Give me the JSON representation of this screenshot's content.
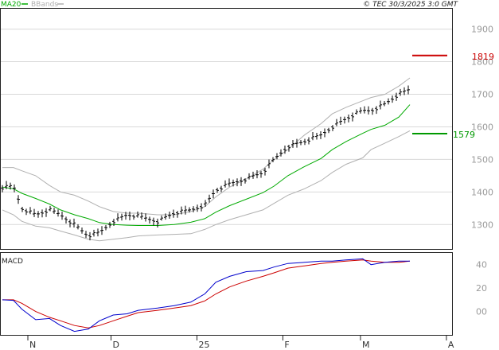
{
  "header": {
    "legend_ma20": "MA20",
    "legend_bbands": "BBands",
    "copyright": "© TEC 30/3/2025 3:0 GMT"
  },
  "macd_panel": {
    "label": "MACD"
  },
  "colors": {
    "price_bars": "#000000",
    "ma20": "#00aa00",
    "bbands": "#b0b0b0",
    "resistance": "#cc0000",
    "support": "#009900",
    "macd_line": "#0000cc",
    "signal_line": "#cc0000",
    "grid": "#d9d9d9"
  },
  "chart_data": [
    {
      "type": "line",
      "title": "",
      "xlabel": "",
      "ylabel": "",
      "ylim": [
        1225,
        1965
      ],
      "y_ticks": [
        "1900",
        "1800",
        "1700",
        "1600",
        "1500",
        "1400",
        "1300"
      ],
      "x_ticks": [
        "N",
        "D",
        "25",
        "F",
        "M",
        "A"
      ],
      "grid": true,
      "legend": "top-left",
      "x": [
        "2024-11-01",
        "2024-11-05",
        "2024-11-08",
        "2024-11-13",
        "2024-11-18",
        "2024-11-22",
        "2024-11-27",
        "2024-12-02",
        "2024-12-06",
        "2024-12-11",
        "2024-12-16",
        "2024-12-20",
        "2024-12-27",
        "2025-01-02",
        "2025-01-08",
        "2025-01-13",
        "2025-01-17",
        "2025-01-22",
        "2025-01-28",
        "2025-02-03",
        "2025-02-07",
        "2025-02-12",
        "2025-02-18",
        "2025-02-24",
        "2025-02-28",
        "2025-03-05",
        "2025-03-11",
        "2025-03-14",
        "2025-03-19",
        "2025-03-24",
        "2025-03-28"
      ],
      "series": [
        {
          "name": "Close",
          "values": [
            1413,
            1418,
            1350,
            1330,
            1345,
            1330,
            1300,
            1265,
            1275,
            1310,
            1330,
            1325,
            1310,
            1335,
            1345,
            1360,
            1405,
            1425,
            1440,
            1460,
            1500,
            1540,
            1555,
            1575,
            1600,
            1625,
            1650,
            1650,
            1670,
            1700,
            1715
          ]
        },
        {
          "name": "MA20",
          "values": [
            1415,
            1410,
            1396,
            1380,
            1363,
            1345,
            1330,
            1318,
            1306,
            1300,
            1298,
            1297,
            1297,
            1300,
            1307,
            1318,
            1338,
            1358,
            1378,
            1398,
            1418,
            1450,
            1478,
            1503,
            1530,
            1555,
            1580,
            1592,
            1605,
            1630,
            1668
          ]
        },
        {
          "name": "BBands",
          "values": [
            1475,
            1475,
            1465,
            1450,
            1420,
            1400,
            1390,
            1372,
            1355,
            1340,
            1335,
            1335,
            1330,
            1330,
            1340,
            1355,
            1385,
            1415,
            1440,
            1470,
            1500,
            1530,
            1575,
            1610,
            1640,
            1660,
            1680,
            1690,
            1700,
            1725,
            1750
          ]
        },
        {
          "name": "BBands",
          "values": [
            1345,
            1330,
            1310,
            1295,
            1290,
            1280,
            1268,
            1255,
            1250,
            1255,
            1260,
            1265,
            1268,
            1270,
            1272,
            1285,
            1300,
            1315,
            1330,
            1345,
            1365,
            1390,
            1410,
            1435,
            1460,
            1485,
            1505,
            1530,
            1550,
            1570,
            1588
          ]
        }
      ],
      "levels": [
        {
          "label": "1819",
          "value": 1819
        },
        {
          "label": "1579",
          "value": 1579
        }
      ]
    },
    {
      "type": "line",
      "title": "MACD",
      "ylim": [
        -20,
        50
      ],
      "y_ticks": [
        "40",
        "20",
        "00"
      ],
      "grid": false,
      "x": [
        "2024-11-01",
        "2024-11-05",
        "2024-11-08",
        "2024-11-13",
        "2024-11-18",
        "2024-11-22",
        "2024-11-27",
        "2024-12-02",
        "2024-12-06",
        "2024-12-11",
        "2024-12-16",
        "2024-12-20",
        "2024-12-27",
        "2025-01-02",
        "2025-01-08",
        "2025-01-13",
        "2025-01-17",
        "2025-01-22",
        "2025-01-28",
        "2025-02-03",
        "2025-02-07",
        "2025-02-12",
        "2025-02-18",
        "2025-02-24",
        "2025-02-28",
        "2025-03-05",
        "2025-03-11",
        "2025-03-14",
        "2025-03-19",
        "2025-03-24",
        "2025-03-28"
      ],
      "series": [
        {
          "name": "MACD",
          "values": [
            10,
            9.5,
            2,
            -7,
            -6,
            -12,
            -17,
            -15,
            -8,
            -3,
            -2,
            1,
            3,
            5,
            8,
            15,
            25,
            30,
            34,
            35,
            38,
            41,
            42,
            43,
            43,
            44,
            45,
            40,
            42,
            43,
            43
          ]
        },
        {
          "name": "Signal",
          "values": [
            10,
            10,
            7,
            0,
            -5,
            -8,
            -12,
            -14,
            -12,
            -8,
            -4,
            -1,
            1,
            3,
            5,
            9,
            15,
            21,
            26,
            30,
            33,
            37,
            39,
            41,
            42,
            43,
            44,
            43,
            42,
            42,
            43
          ]
        }
      ]
    }
  ]
}
